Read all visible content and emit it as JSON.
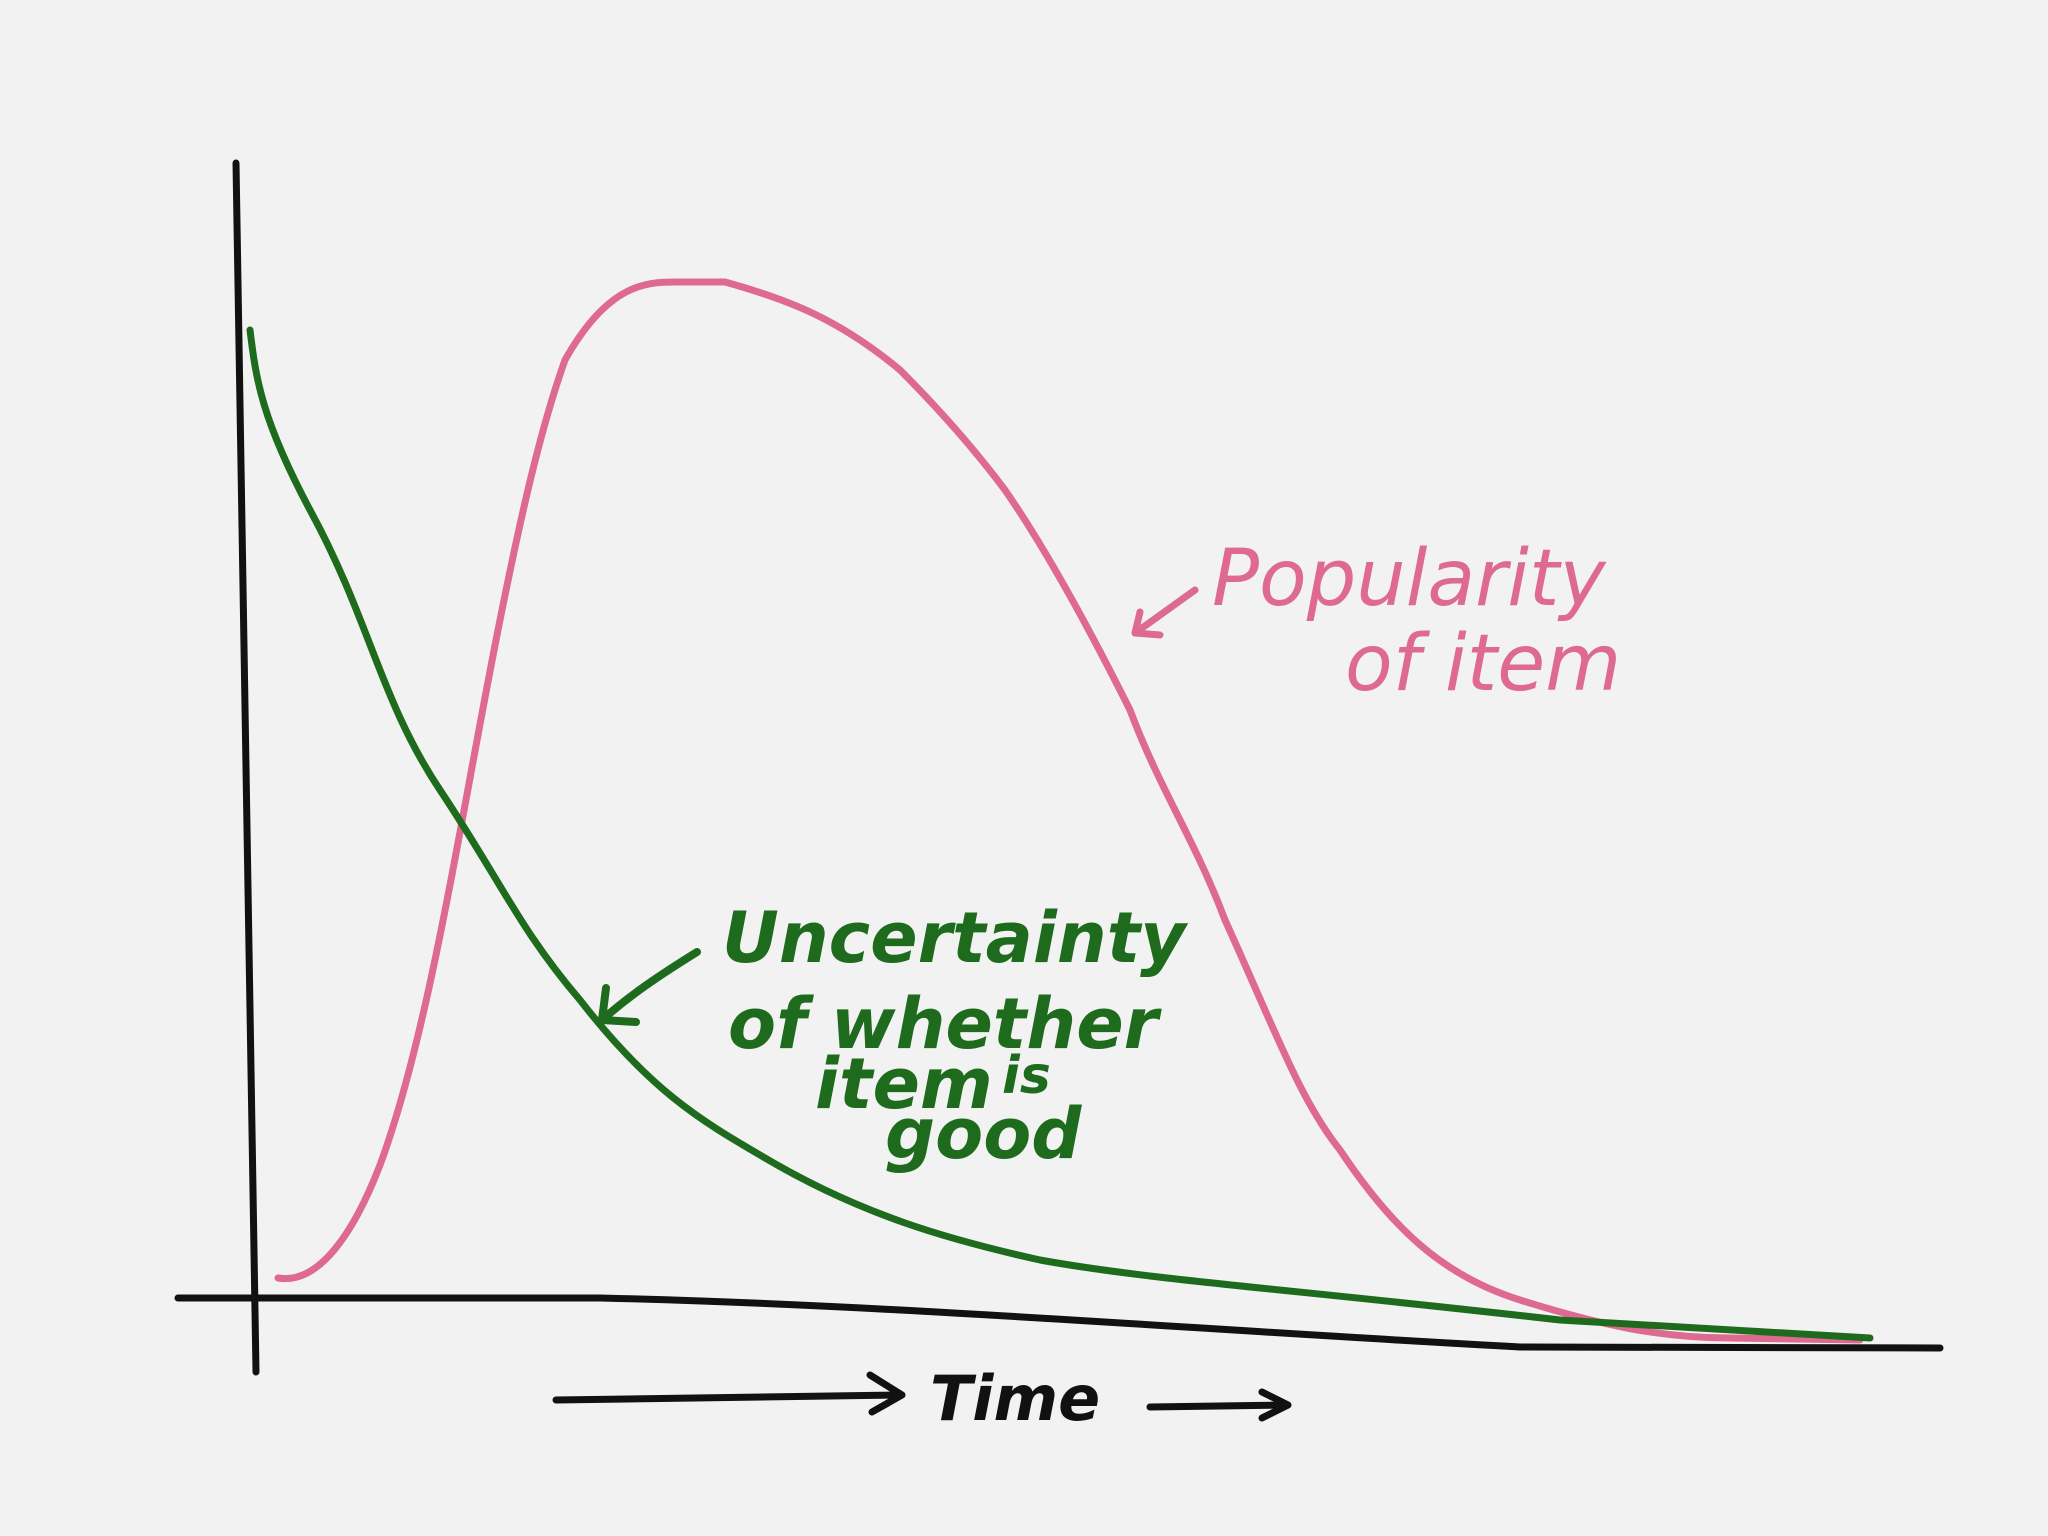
{
  "colors": {
    "background": "#f2f2f2",
    "axis": "#111111",
    "popularity": "#de6a91",
    "uncertainty": "#1e6b1e"
  },
  "labels": {
    "popularity_line1": "Popularity",
    "popularity_line2": "of item",
    "uncertainty_line1": "Uncertainty",
    "uncertainty_line2": "of whether",
    "uncertainty_line3": "item",
    "uncertainty_line4": "is",
    "uncertainty_line5": "good",
    "time": "Time"
  }
}
